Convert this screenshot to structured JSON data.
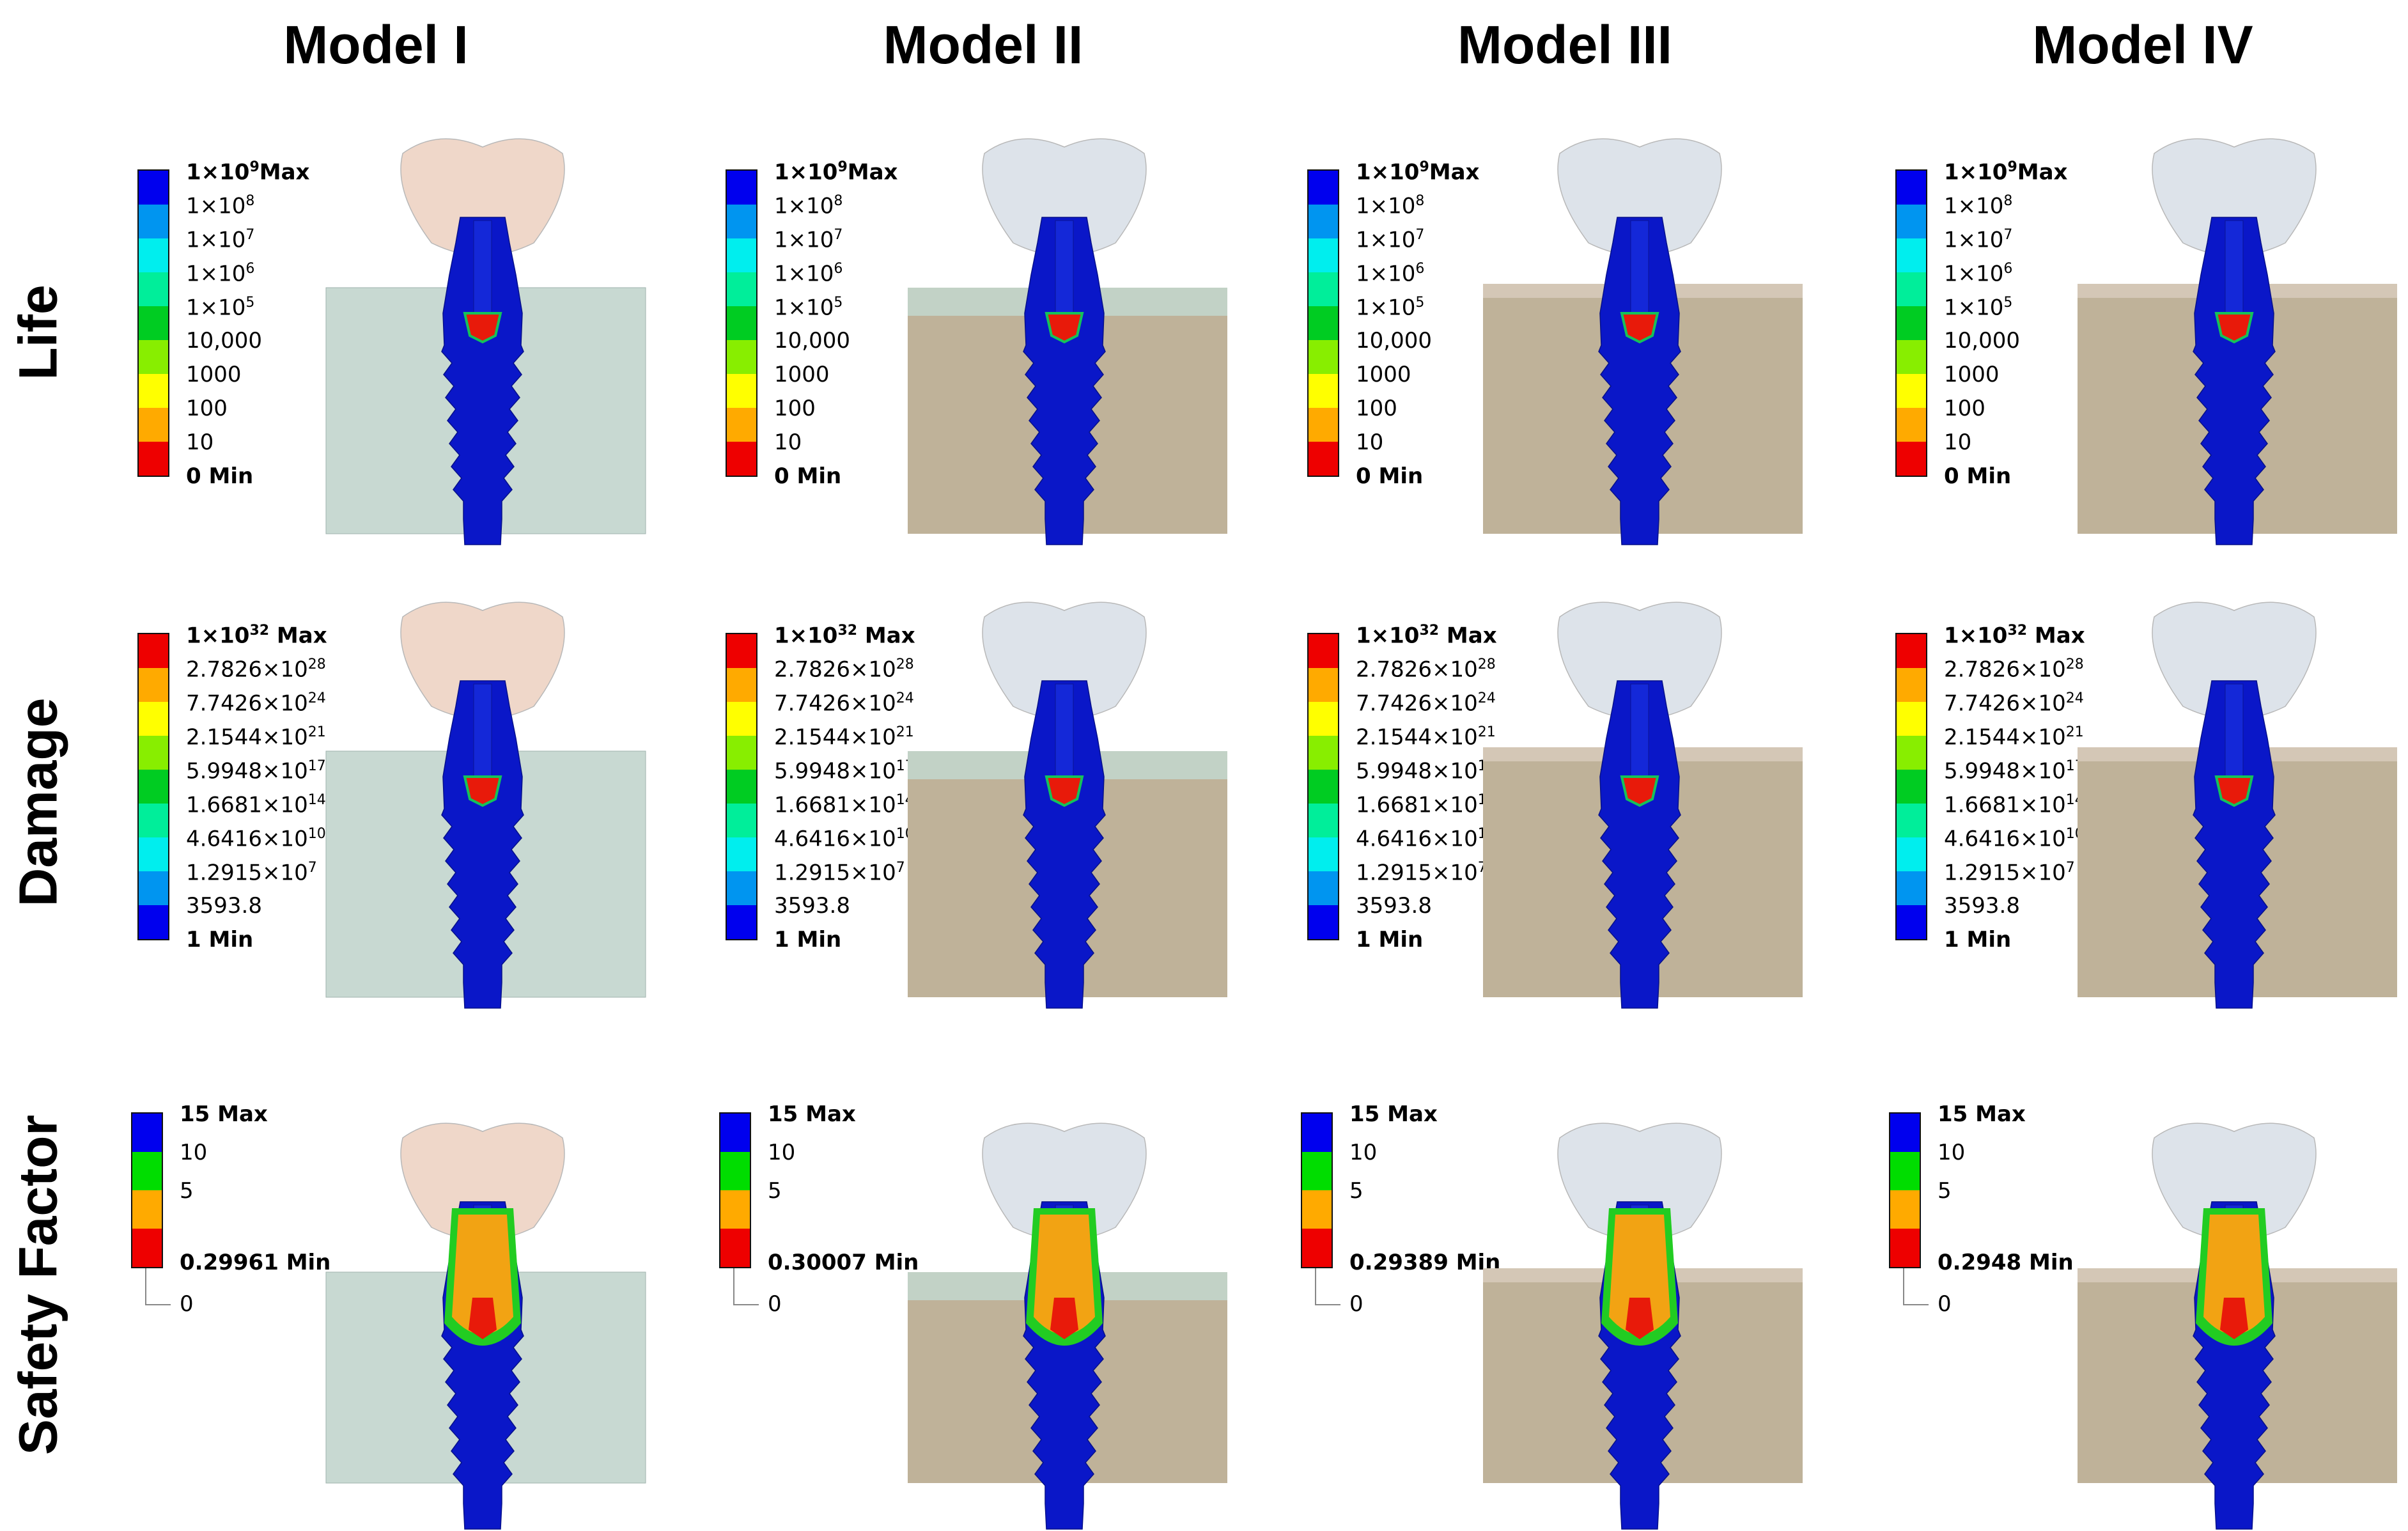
{
  "columns": [
    "Model I",
    "Model II",
    "Model III",
    "Model IV"
  ],
  "rows": [
    "Life",
    "Damage",
    "Safety Factor"
  ],
  "colors": {
    "bone_model_i": "#c8d9d2",
    "bone_cortical": "#c2d2c6",
    "bone_cancellous": "#bfb299",
    "bone_top_beige": "#d4c7b6",
    "crown_model_i": "#efd7c9",
    "crown_other": "#dde3ea",
    "implant": "#0a17c8"
  },
  "life_legend": {
    "colors": [
      "#0000ee",
      "#0095f0",
      "#00eeee",
      "#00ee9a",
      "#00cc22",
      "#88ee00",
      "#ffff00",
      "#ffaa00",
      "#ee0000"
    ],
    "labels": [
      {
        "base": "1×10",
        "exp": "9",
        "tail": "Max",
        "bold": true
      },
      {
        "base": "1×10",
        "exp": "8",
        "tail": "",
        "bold": false
      },
      {
        "base": "1×10",
        "exp": "7",
        "tail": "",
        "bold": false
      },
      {
        "base": "1×10",
        "exp": "6",
        "tail": "",
        "bold": false
      },
      {
        "base": "1×10",
        "exp": "5",
        "tail": "",
        "bold": false
      },
      {
        "base": "10,000",
        "exp": "",
        "tail": "",
        "bold": false
      },
      {
        "base": "1000",
        "exp": "",
        "tail": "",
        "bold": false
      },
      {
        "base": "100",
        "exp": "",
        "tail": "",
        "bold": false
      },
      {
        "base": "10",
        "exp": "",
        "tail": "",
        "bold": false
      },
      {
        "base": "0 Min",
        "exp": "",
        "tail": "",
        "bold": true
      }
    ]
  },
  "damage_legend": {
    "colors": [
      "#ee0000",
      "#ffaa00",
      "#ffff00",
      "#88ee00",
      "#00cc22",
      "#00ee9a",
      "#00eeee",
      "#0095f0",
      "#0000ee"
    ],
    "labels": [
      {
        "base": "1×10",
        "exp": "32",
        "tail": " Max",
        "bold": true
      },
      {
        "base": "2.7826×10",
        "exp": "28",
        "tail": "",
        "bold": false
      },
      {
        "base": "7.7426×10",
        "exp": "24",
        "tail": "",
        "bold": false
      },
      {
        "base": "2.1544×10",
        "exp": "21",
        "tail": "",
        "bold": false
      },
      {
        "base": "5.9948×10",
        "exp": "17",
        "tail": "",
        "bold": false
      },
      {
        "base": "1.6681×10",
        "exp": "14",
        "tail": "",
        "bold": false
      },
      {
        "base": "4.6416×10",
        "exp": "10",
        "tail": "",
        "bold": false
      },
      {
        "base": "1.2915×10",
        "exp": "7",
        "tail": "",
        "bold": false
      },
      {
        "base": "3593.8",
        "exp": "",
        "tail": "",
        "bold": false
      },
      {
        "base": "1 Min",
        "exp": "",
        "tail": "",
        "bold": true
      }
    ]
  },
  "safety_legend": {
    "colors": [
      "#0000ee",
      "#00dd00",
      "#ffaa00",
      "#ee0000"
    ],
    "max_label": "15 Max",
    "mid_labels": [
      "10",
      "5"
    ],
    "zero_label": "0",
    "min_labels": [
      "0.29961 Min",
      "0.30007 Min",
      "0.29389 Min",
      "0.2948 Min"
    ]
  }
}
